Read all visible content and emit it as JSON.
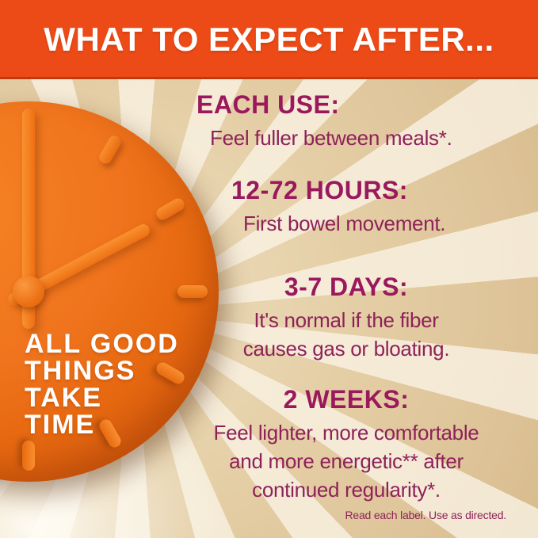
{
  "header": {
    "title": "WHAT TO EXPECT AFTER..."
  },
  "clock": {
    "caption_lines": [
      "ALL GOOD",
      "THINGS",
      "TAKE",
      "TIME"
    ]
  },
  "sections": [
    {
      "heading": "EACH USE:",
      "body_lines": [
        "Feel fuller between meals*."
      ]
    },
    {
      "heading": "12-72 HOURS:",
      "body_lines": [
        "First bowel movement."
      ]
    },
    {
      "heading": "3-7 DAYS:",
      "body_lines": [
        "It's normal if the fiber",
        "causes gas or bloating."
      ]
    },
    {
      "heading": "2 WEEKS:",
      "body_lines": [
        "Feel lighter, more comfortable",
        "and more energetic** after",
        "continued regularity*."
      ]
    }
  ],
  "footer": {
    "disclaimer": "Read each label. Use as directed."
  },
  "colors": {
    "header_bg": "#EC4A17",
    "header_text": "#FFFFFF",
    "heading_text": "#9A195C",
    "body_text": "#8E2159",
    "background_tan": "#E2C99F",
    "ray_light": "#F9F2E3",
    "clock_orange": "#F0741D",
    "clock_orange_dark": "#C04E10",
    "caption_text": "#FFFFFF"
  }
}
